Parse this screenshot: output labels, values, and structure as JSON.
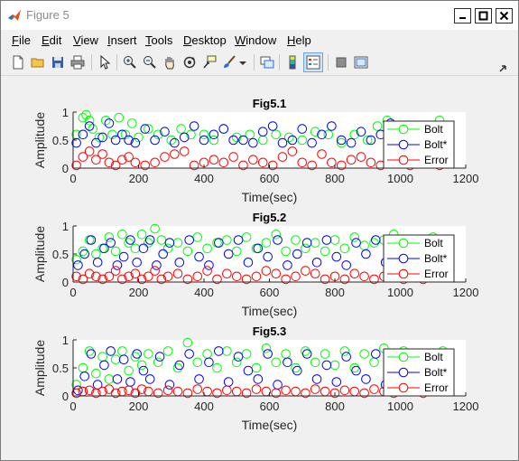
{
  "window": {
    "title": "Figure 5"
  },
  "menu": [
    {
      "key": "F",
      "rest": "ile"
    },
    {
      "key": "E",
      "rest": "dit"
    },
    {
      "key": "V",
      "rest": "iew"
    },
    {
      "key": "I",
      "rest": "nsert"
    },
    {
      "key": "T",
      "rest": "ools"
    },
    {
      "key": "D",
      "rest": "esktop"
    },
    {
      "key": "W",
      "rest": "indow"
    },
    {
      "key": "H",
      "rest": "elp"
    }
  ],
  "toolbar": [
    "new-figure",
    "open-file",
    "save",
    "print",
    "edit-plot",
    "zoom-in",
    "zoom-out",
    "pan",
    "rotate-3d",
    "data-cursor",
    "brush",
    "link-plot",
    "colorbar",
    "legend",
    "hide-plot-tools",
    "show-plot-tools"
  ],
  "colors": {
    "bolt": "#00ff00",
    "bolt_star": "#0000ff",
    "error": "#ff0000"
  },
  "chart_data": [
    {
      "type": "scatter",
      "title": "Fig5.1",
      "xlabel": "Time(sec)",
      "ylabel": "Amplitude",
      "xlim": [
        0,
        1200
      ],
      "ylim": [
        0,
        1
      ],
      "xticks": [
        "0",
        "200",
        "400",
        "600",
        "800",
        "1000",
        "1200"
      ],
      "yticks": [
        "0",
        "0.5",
        "1"
      ],
      "legend_position": "bottom-right",
      "series": [
        {
          "name": "Bolt",
          "color": "#00ff00",
          "x": [
            10,
            30,
            40,
            50,
            60,
            80,
            100,
            120,
            140,
            160,
            180,
            200,
            230,
            260,
            300,
            330,
            360,
            400,
            430,
            460,
            500,
            540,
            580,
            620,
            660,
            700,
            740,
            780,
            820,
            860,
            900,
            930,
            960,
            1000,
            1040,
            1080,
            1120,
            1150
          ],
          "y": [
            0.6,
            0.9,
            0.95,
            0.85,
            0.7,
            0.55,
            0.85,
            0.6,
            0.9,
            0.6,
            0.8,
            0.55,
            0.7,
            0.6,
            0.5,
            0.7,
            0.6,
            0.6,
            0.5,
            0.7,
            0.55,
            0.6,
            0.5,
            0.6,
            0.55,
            0.5,
            0.65,
            0.6,
            0.45,
            0.6,
            0.5,
            0.75,
            0.85,
            0.55,
            0.75,
            0.6,
            0.85,
            0.6
          ]
        },
        {
          "name": "Bolt*",
          "color": "#0000ff",
          "x": [
            10,
            30,
            50,
            70,
            90,
            110,
            130,
            150,
            170,
            190,
            220,
            250,
            280,
            310,
            340,
            370,
            400,
            430,
            460,
            490,
            520,
            550,
            580,
            610,
            640,
            670,
            700,
            730,
            760,
            790,
            820,
            850,
            880,
            910,
            940,
            970,
            1000,
            1030,
            1060,
            1090,
            1120,
            1150
          ],
          "y": [
            0.45,
            0.6,
            0.75,
            0.45,
            0.55,
            0.8,
            0.5,
            0.6,
            0.5,
            0.45,
            0.7,
            0.5,
            0.65,
            0.45,
            0.55,
            0.75,
            0.5,
            0.6,
            0.7,
            0.5,
            0.5,
            0.45,
            0.65,
            0.75,
            0.45,
            0.5,
            0.7,
            0.45,
            0.6,
            0.75,
            0.5,
            0.45,
            0.65,
            0.5,
            0.6,
            0.8,
            0.5,
            0.75,
            0.45,
            0.6,
            0.7,
            0.5
          ]
        },
        {
          "name": "Error",
          "color": "#ff0000",
          "x": [
            10,
            30,
            50,
            70,
            90,
            110,
            130,
            150,
            170,
            190,
            220,
            250,
            280,
            310,
            340,
            370,
            400,
            430,
            460,
            490,
            520,
            550,
            580,
            610,
            640,
            670,
            700,
            730,
            760,
            790,
            820,
            850,
            880,
            910,
            940,
            970,
            1000,
            1030,
            1060,
            1090,
            1120,
            1150
          ],
          "y": [
            0.05,
            0.2,
            0.3,
            0.15,
            0.25,
            0.1,
            0.05,
            0.15,
            0.2,
            0.1,
            0.05,
            0.1,
            0.2,
            0.25,
            0.3,
            0.05,
            0.1,
            0.15,
            0.1,
            0.2,
            0.05,
            0.15,
            0.1,
            0.05,
            0.2,
            0.3,
            0.1,
            0.05,
            0.25,
            0.1,
            0.05,
            0.15,
            0.2,
            0.1,
            0.05,
            0.15,
            0.1,
            0.05,
            0.1,
            0.15,
            0.05,
            0.1
          ]
        }
      ]
    },
    {
      "type": "scatter",
      "title": "Fig5.2",
      "xlabel": "Time(sec)",
      "ylabel": "Amplitude",
      "xlim": [
        0,
        1200
      ],
      "ylim": [
        0,
        1
      ],
      "xticks": [
        "0",
        "200",
        "400",
        "600",
        "800",
        "1000",
        "1200"
      ],
      "yticks": [
        "0",
        "0.5",
        "1"
      ],
      "legend_position": "bottom-right",
      "series": [
        {
          "name": "Bolt",
          "color": "#00ff00",
          "x": [
            10,
            30,
            50,
            70,
            90,
            110,
            130,
            150,
            170,
            190,
            210,
            230,
            250,
            270,
            290,
            320,
            350,
            380,
            410,
            440,
            470,
            500,
            530,
            560,
            590,
            620,
            650,
            680,
            710,
            740,
            770,
            800,
            830,
            860,
            890,
            920,
            950,
            980,
            1010,
            1040,
            1070,
            1100,
            1130
          ],
          "y": [
            0.4,
            0.55,
            0.75,
            0.5,
            0.6,
            0.8,
            0.55,
            0.85,
            0.7,
            0.6,
            0.85,
            0.7,
            0.95,
            0.75,
            0.6,
            0.7,
            0.55,
            0.8,
            0.6,
            0.7,
            0.75,
            0.55,
            0.8,
            0.6,
            0.7,
            0.85,
            0.55,
            0.75,
            0.6,
            0.7,
            0.55,
            0.75,
            0.6,
            0.8,
            0.65,
            0.7,
            0.75,
            0.85,
            0.6,
            0.7,
            0.65,
            0.8,
            0.6
          ]
        },
        {
          "name": "Bolt*",
          "color": "#0000ff",
          "x": [
            15,
            35,
            55,
            75,
            95,
            115,
            135,
            155,
            175,
            195,
            215,
            235,
            255,
            275,
            295,
            325,
            355,
            385,
            415,
            445,
            475,
            505,
            535,
            565,
            595,
            625,
            655,
            685,
            715,
            745,
            775,
            805,
            835,
            865,
            895,
            925,
            955,
            985,
            1015,
            1045,
            1075,
            1105,
            1135
          ],
          "y": [
            0.3,
            0.5,
            0.75,
            0.35,
            0.6,
            0.7,
            0.3,
            0.45,
            0.75,
            0.35,
            0.6,
            0.75,
            0.3,
            0.5,
            0.7,
            0.35,
            0.75,
            0.45,
            0.3,
            0.7,
            0.5,
            0.75,
            0.35,
            0.6,
            0.45,
            0.75,
            0.3,
            0.5,
            0.7,
            0.35,
            0.75,
            0.45,
            0.3,
            0.7,
            0.5,
            0.75,
            0.35,
            0.6,
            0.45,
            0.75,
            0.3,
            0.5,
            0.45
          ]
        },
        {
          "name": "Error",
          "color": "#ff0000",
          "x": [
            10,
            30,
            50,
            70,
            90,
            110,
            130,
            150,
            170,
            190,
            210,
            230,
            250,
            270,
            290,
            320,
            350,
            380,
            410,
            440,
            470,
            500,
            530,
            560,
            590,
            620,
            650,
            680,
            710,
            740,
            770,
            800,
            830,
            860,
            890,
            920,
            950,
            980,
            1010,
            1040,
            1070,
            1100,
            1130
          ],
          "y": [
            0.1,
            0.05,
            0.15,
            0.1,
            0.05,
            0.1,
            0.2,
            0.05,
            0.1,
            0.15,
            0.05,
            0.1,
            0.2,
            0.05,
            0.1,
            0.15,
            0.05,
            0.1,
            0.2,
            0.05,
            0.15,
            0.1,
            0.05,
            0.1,
            0.2,
            0.15,
            0.05,
            0.1,
            0.2,
            0.15,
            0.05,
            0.1,
            0.05,
            0.15,
            0.1,
            0.05,
            0.1,
            0.15,
            0.05,
            0.1,
            0.05,
            0.15,
            0.1
          ]
        }
      ]
    },
    {
      "type": "scatter",
      "title": "Fig5.3",
      "xlabel": "Time(sec)",
      "ylabel": "Amplitude",
      "xlim": [
        0,
        1200
      ],
      "ylim": [
        0,
        1
      ],
      "xticks": [
        "0",
        "200",
        "400",
        "600",
        "800",
        "1000",
        "1200"
      ],
      "yticks": [
        "0",
        "0.5",
        "1"
      ],
      "legend_position": "bottom-right",
      "series": [
        {
          "name": "Bolt",
          "color": "#00ff00",
          "x": [
            10,
            30,
            50,
            70,
            90,
            110,
            130,
            150,
            170,
            190,
            210,
            230,
            260,
            290,
            320,
            350,
            380,
            410,
            440,
            470,
            500,
            530,
            560,
            590,
            620,
            650,
            680,
            710,
            740,
            770,
            800,
            830,
            860,
            890,
            920,
            950,
            980,
            1010,
            1040,
            1070,
            1100,
            1130
          ],
          "y": [
            0.2,
            0.5,
            0.8,
            0.4,
            0.7,
            0.3,
            0.65,
            0.8,
            0.45,
            0.7,
            0.55,
            0.75,
            0.6,
            0.8,
            0.5,
            0.95,
            0.6,
            0.75,
            0.5,
            0.8,
            0.6,
            0.75,
            0.5,
            0.85,
            0.6,
            0.75,
            0.5,
            0.8,
            0.6,
            0.75,
            0.55,
            0.8,
            0.5,
            0.75,
            0.6,
            0.85,
            0.5,
            0.8,
            0.6,
            0.75,
            0.55,
            0.8
          ]
        },
        {
          "name": "Bolt*",
          "color": "#0000ff",
          "x": [
            15,
            35,
            55,
            75,
            95,
            115,
            135,
            155,
            175,
            195,
            215,
            235,
            265,
            295,
            325,
            355,
            385,
            415,
            445,
            475,
            505,
            535,
            565,
            595,
            625,
            655,
            685,
            715,
            745,
            775,
            805,
            835,
            865,
            895,
            925,
            955,
            985,
            1015,
            1045,
            1075,
            1105,
            1135
          ],
          "y": [
            0.1,
            0.35,
            0.75,
            0.2,
            0.55,
            0.8,
            0.3,
            0.65,
            0.25,
            0.75,
            0.45,
            0.3,
            0.7,
            0.2,
            0.55,
            0.75,
            0.3,
            0.6,
            0.8,
            0.25,
            0.7,
            0.45,
            0.3,
            0.75,
            0.2,
            0.6,
            0.45,
            0.75,
            0.3,
            0.55,
            0.25,
            0.7,
            0.45,
            0.3,
            0.75,
            0.2,
            0.55,
            0.45,
            0.7,
            0.3,
            0.6,
            0.45
          ]
        },
        {
          "name": "Error",
          "color": "#ff0000",
          "x": [
            10,
            30,
            50,
            70,
            90,
            110,
            130,
            150,
            170,
            190,
            210,
            230,
            260,
            290,
            320,
            350,
            380,
            410,
            440,
            470,
            500,
            530,
            560,
            590,
            620,
            650,
            680,
            710,
            740,
            770,
            800,
            830,
            860,
            890,
            920,
            950,
            980,
            1010,
            1040,
            1070,
            1100,
            1130
          ],
          "y": [
            0.05,
            0.08,
            0.1,
            0.05,
            0.08,
            0.12,
            0.05,
            0.08,
            0.1,
            0.05,
            0.12,
            0.08,
            0.05,
            0.1,
            0.08,
            0.05,
            0.12,
            0.08,
            0.05,
            0.1,
            0.08,
            0.05,
            0.12,
            0.08,
            0.05,
            0.1,
            0.08,
            0.05,
            0.12,
            0.08,
            0.05,
            0.1,
            0.08,
            0.05,
            0.12,
            0.08,
            0.05,
            0.1,
            0.08,
            0.05,
            0.1,
            0.08
          ]
        }
      ]
    }
  ]
}
